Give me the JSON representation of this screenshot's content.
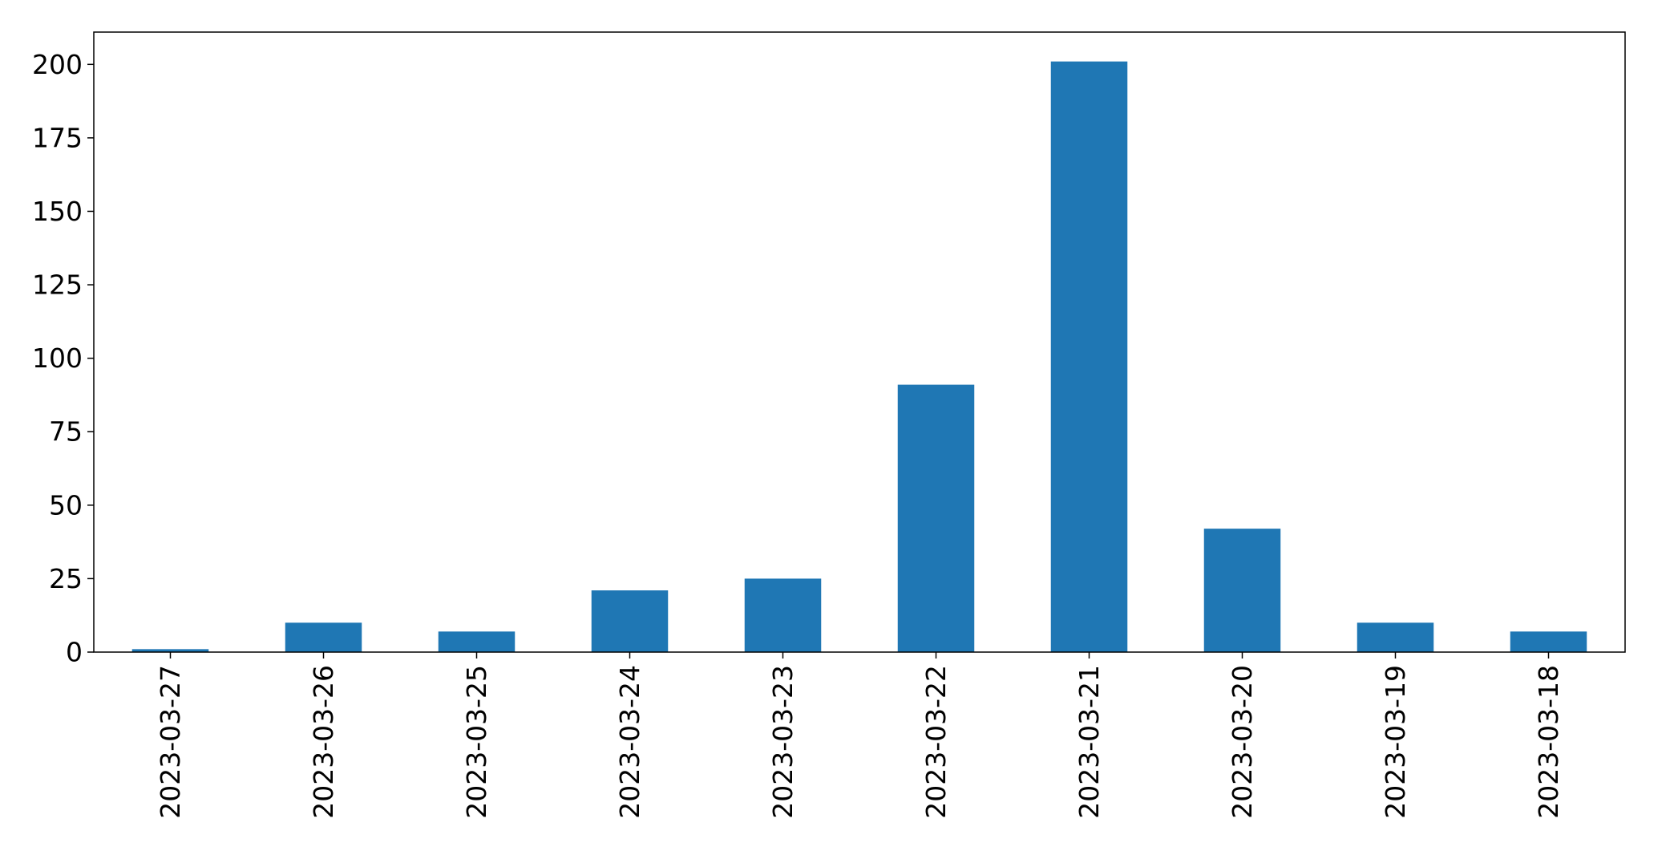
{
  "chart_data": {
    "type": "bar",
    "title": "",
    "xlabel": "",
    "ylabel": "",
    "categories": [
      "2023-03-27",
      "2023-03-26",
      "2023-03-25",
      "2023-03-24",
      "2023-03-23",
      "2023-03-22",
      "2023-03-21",
      "2023-03-20",
      "2023-03-19",
      "2023-03-18"
    ],
    "values": [
      1,
      10,
      7,
      21,
      25,
      91,
      201,
      42,
      10,
      7
    ],
    "ylim": [
      0,
      211
    ],
    "yticks": [
      0,
      25,
      50,
      75,
      100,
      125,
      150,
      175,
      200
    ],
    "grid": false,
    "legend": "none",
    "bar_color": "#1f77b4"
  }
}
